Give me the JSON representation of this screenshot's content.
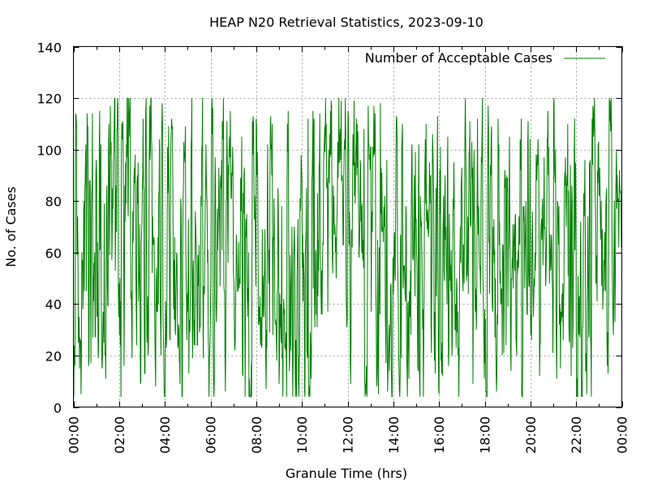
{
  "chart_data": {
    "type": "line",
    "title": "HEAP N20 Retrieval Statistics, 2023-09-10",
    "xlabel": "Granule Time (hrs)",
    "ylabel": "No. of Cases",
    "xlim": [
      "00:00",
      "24:00"
    ],
    "ylim": [
      0,
      140
    ],
    "x_tick_labels": [
      "00:00",
      "02:00",
      "04:00",
      "06:00",
      "08:00",
      "10:00",
      "12:00",
      "14:00",
      "16:00",
      "18:00",
      "20:00",
      "22:00",
      "00:00"
    ],
    "y_tick_values": [
      0,
      20,
      40,
      60,
      80,
      100,
      120,
      140
    ],
    "grid": true,
    "legend_position": "top-right",
    "x_interval_minutes": 1,
    "series": [
      {
        "name": "Number of Acceptable Cases",
        "color": "#008000",
        "value_range": [
          4,
          120
        ],
        "values": []
      }
    ]
  }
}
